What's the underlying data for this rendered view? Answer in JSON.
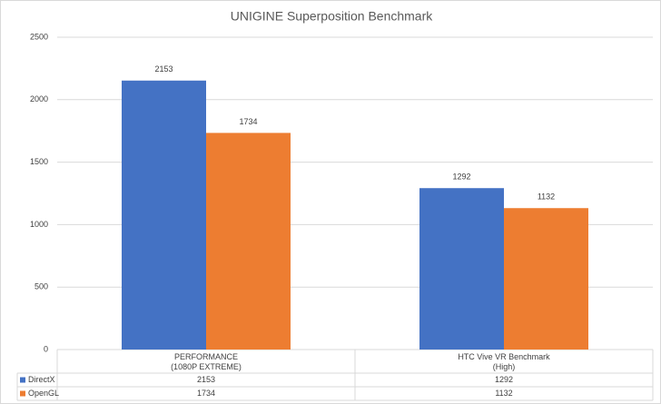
{
  "chart_data": {
    "type": "bar",
    "title": "UNIGINE Superposition Benchmark",
    "categories": [
      "PERFORMANCE\n(1080P EXTREME)",
      "HTC Vive VR Benchmark\n(High)"
    ],
    "series": [
      {
        "name": "DirectX",
        "color": "#4472c4",
        "values": [
          2153,
          1292
        ]
      },
      {
        "name": "OpenGL",
        "color": "#ed7d31",
        "values": [
          1734,
          1132
        ]
      }
    ],
    "ylim": [
      0,
      2500
    ],
    "yticks": [
      0,
      500,
      1000,
      1500,
      2000,
      2500
    ],
    "grid": true
  }
}
